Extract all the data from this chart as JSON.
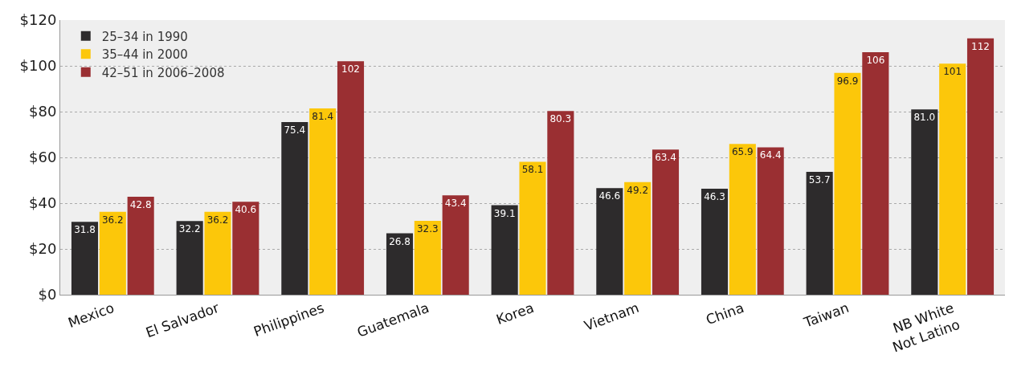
{
  "chart_data": {
    "type": "bar",
    "categories": [
      "Mexico",
      "El Salvador",
      "Philippines",
      "Guatemala",
      "Korea",
      "Vietnam",
      "China",
      "Taiwan",
      "NB White\nNot Latino"
    ],
    "series": [
      {
        "name": "25–34 in 1990",
        "color": "#2d2b2c",
        "values": [
          31.8,
          32.2,
          75.4,
          26.8,
          39.1,
          46.6,
          46.3,
          53.7,
          81.0
        ],
        "value_labels": [
          "31.8",
          "32.2",
          "75.4",
          "26.8",
          "39.1",
          "46.6",
          "46.3",
          "53.7",
          "81.0"
        ]
      },
      {
        "name": "35–44 in 2000",
        "color": "#fcc70a",
        "values": [
          36.2,
          36.2,
          81.4,
          32.3,
          58.1,
          49.2,
          65.9,
          96.9,
          101
        ],
        "value_labels": [
          "36.2",
          "36.2",
          "81.4",
          "32.3",
          "58.1",
          "49.2",
          "65.9",
          "96.9",
          "101"
        ]
      },
      {
        "name": "42–51 in 2006–2008",
        "color": "#9a2f32",
        "values": [
          42.8,
          40.6,
          102,
          43.4,
          80.3,
          63.4,
          64.4,
          106,
          112
        ],
        "value_labels": [
          "42.8",
          "40.6",
          "102",
          "43.4",
          "80.3",
          "63.4",
          "64.4",
          "106",
          "112"
        ]
      }
    ],
    "ylim": [
      0,
      120
    ],
    "yticks": [
      {
        "value": 0,
        "label": "$0"
      },
      {
        "value": 20,
        "label": "$20"
      },
      {
        "value": 40,
        "label": "$40"
      },
      {
        "value": 60,
        "label": "$60"
      },
      {
        "value": 80,
        "label": "$80"
      },
      {
        "value": 100,
        "label": "$100"
      },
      {
        "value": 120,
        "label": "$120"
      }
    ],
    "grid": "y",
    "legend": "top left"
  }
}
